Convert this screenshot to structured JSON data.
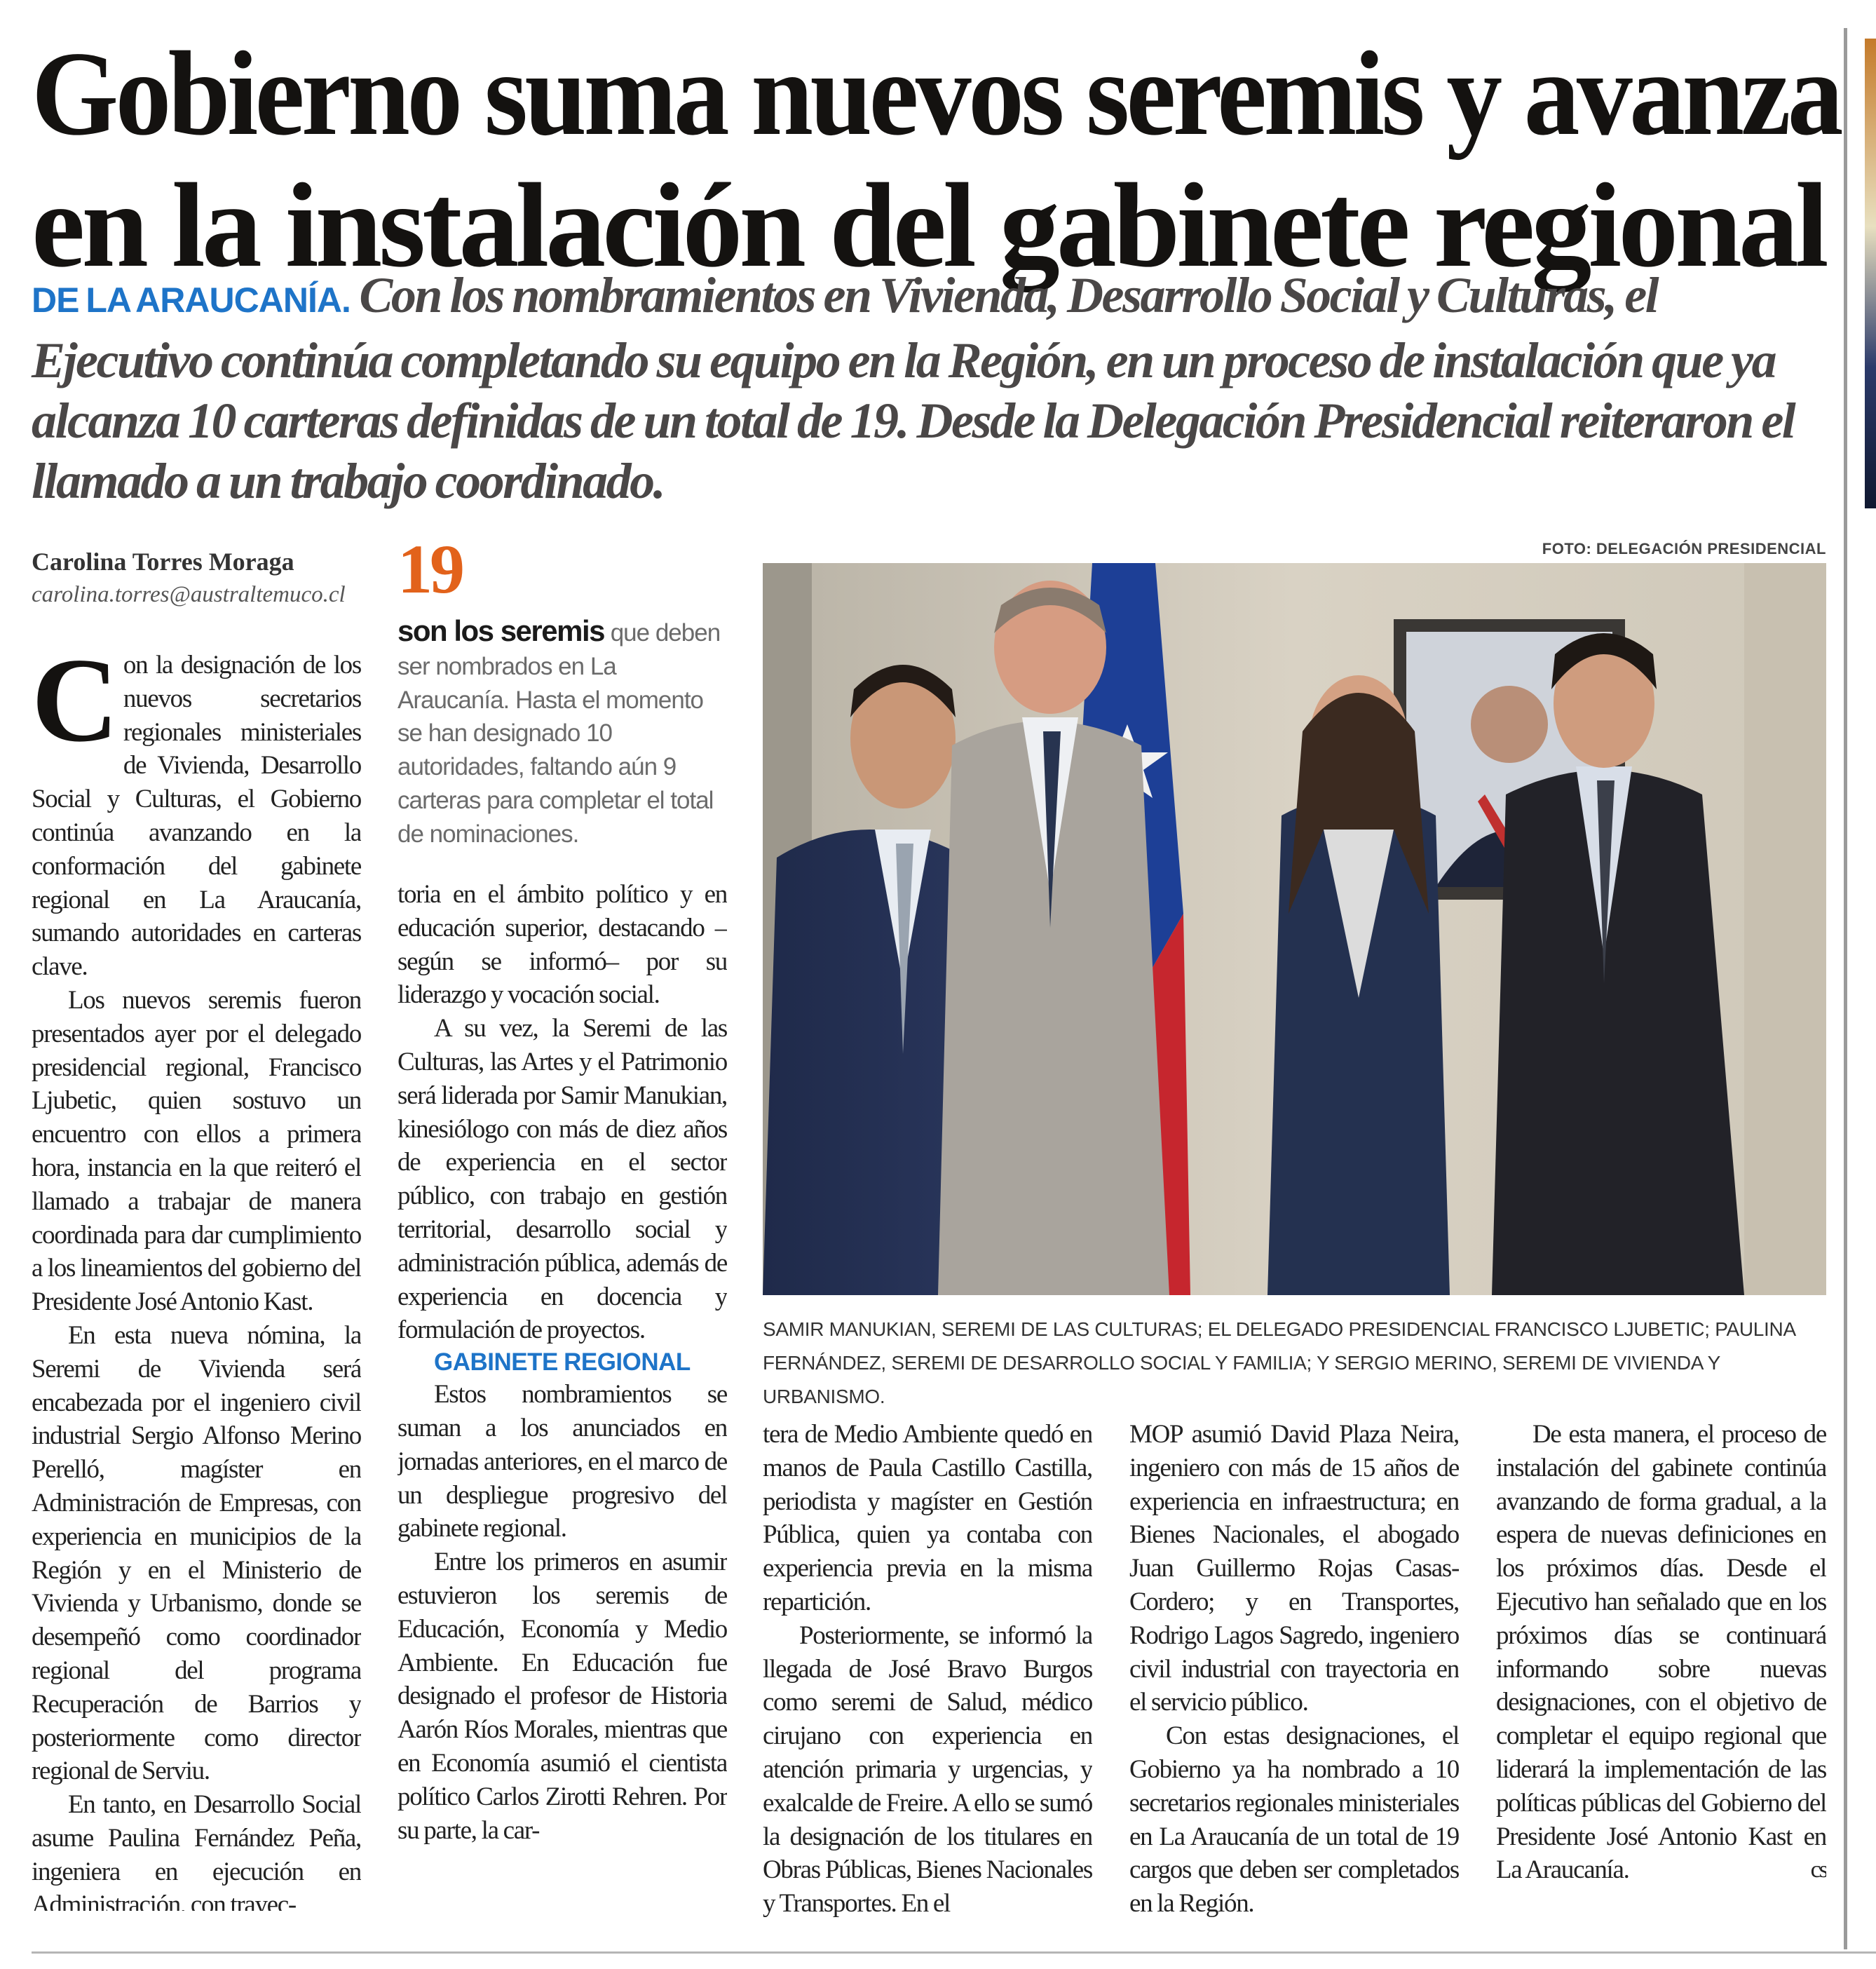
{
  "headline": {
    "line1": "Gobierno suma nuevos seremis y avanza",
    "line2": "en la instalación del gabinete regional"
  },
  "deck": {
    "kicker": "DE LA ARAUCANÍA.",
    "text": "Con los nombramientos en Vivienda, Desarrollo Social y Culturas, el Ejecutivo continúa completando su equipo en la Región, en un proceso de instalación que ya alcanza 10 carteras definidas de un total de 19. Desde la Delegación Presidencial reiteraron el llamado a un trabajo coordinado."
  },
  "byline": {
    "author": "Carolina Torres Moraga",
    "email": "carolina.torres@australtemuco.cl"
  },
  "factbox": {
    "number": "19",
    "lead": "son los seremis",
    "text": "que deben ser nombrados en La Araucanía. Hasta el momento se han designado 10 autoridades, faltando aún 9 carteras para completar el total de nominaciones."
  },
  "photo": {
    "credit": "FOTO: DELEGACIÓN PRESIDENCIAL",
    "caption": "Samir Manukian, seremi de las Culturas; el delegado presidencial Francisco Ljubetic; Paulina Fernández, seremi de Desarrollo Social y Familia; y Sergio Merino, seremi de Vivienda y Urbanismo."
  },
  "body": {
    "dropcap": "C",
    "p1": "on la designación de los nuevos secretarios regionales ministeriales de Vivienda, Desarrollo Social y Culturas, el Gobierno continúa avanzando en la conformación del gabinete regional en La Araucanía, sumando autoridades en carteras clave.",
    "p2": "Los nuevos seremis fueron presentados ayer por el delegado presidencial regional, Francisco Ljubetic, quien sostuvo un encuentro con ellos a primera hora, instancia en la que reiteró el llamado a trabajar de manera coordinada para dar cumplimiento a los lineamientos del gobierno del Presidente José Antonio Kast.",
    "p3": "En esta nueva nómina, la Seremi de Vivienda será encabezada por el ingeniero civil industrial Sergio Alfonso Merino Perelló, magíster en Administración de Empresas, con experiencia en municipios de la Región y en el Ministerio de Vivienda y Urbanismo, donde se desempeñó como coordinador regional del programa Recuperación de Barrios y posteriormente como director regional de Serviu.",
    "p4": "En tanto, en Desarrollo Social asume Paulina Fernández Peña, ingeniera en ejecución en Administración, con trayec-",
    "p5": "toria en el ámbito político y en educación superior, destacando –según se informó– por su liderazgo y vocación social.",
    "p6": "A su vez, la Seremi de las Culturas, las Artes y el Patrimonio será liderada por Samir Manukian, kinesiólogo con más de diez años de experiencia en el sector público, con trabajo en gestión territorial, desarrollo social y administración pública, además de experiencia en docencia y formulación de proyectos.",
    "subhead": "GABINETE REGIONAL",
    "p7": "Estos nombramientos se suman a los anunciados en jornadas anteriores, en el marco de un despliegue progresivo del gabinete regional.",
    "p8": "Entre los primeros en asumir estuvieron los seremis de Educación, Economía y Medio Ambiente. En Educación fue designado el profesor de Historia Aarón Ríos Morales, mientras que en Economía asumió el cientista político Carlos Zirotti Rehren. Por su parte, la car-",
    "p9": "tera de Medio Ambiente quedó en manos de Paula Castillo Castilla, periodista y magíster en Gestión Pública, quien ya contaba con experiencia previa en la misma repartición.",
    "p10": "Posteriormente, se informó la llegada de José Bravo Burgos como seremi de Salud, médico cirujano con experiencia en atención primaria y urgencias, y exalcalde de Freire. A ello se sumó la designación de los titulares en Obras Públicas, Bienes Nacionales y Transportes. En el",
    "p11": "MOP asumió David Plaza Neira, ingeniero con más de 15 años de experiencia en infraestructura; en Bienes Nacionales, el abogado Juan Guillermo Rojas Casas-Cordero; y en Transportes, Rodrigo Lagos Sagredo, ingeniero civil industrial con trayectoria en el servicio público.",
    "p12": "Con estas designaciones, el Gobierno ya ha nombrado a 10 secretarios regionales ministeriales en La Araucanía de un total de 19 cargos que deben ser completados en la Región.",
    "p13": "De esta manera, el proceso de instalación del gabinete continúa avanzando de forma gradual, a la espera de nuevas definiciones en los próximos días. Desde el Ejecutivo han señalado que en los próximos días se continuará informando sobre nuevas designaciones, con el objetivo de completar el equipo regional que liderará la implementación de las políticas públicas del Gobierno del Presidente José Antonio Kast en La Araucanía.",
    "end_mark": "cs"
  },
  "colors": {
    "kicker_blue": "#1e74c8",
    "number_orange": "#e2621b",
    "deck_gray": "#4a4747"
  }
}
